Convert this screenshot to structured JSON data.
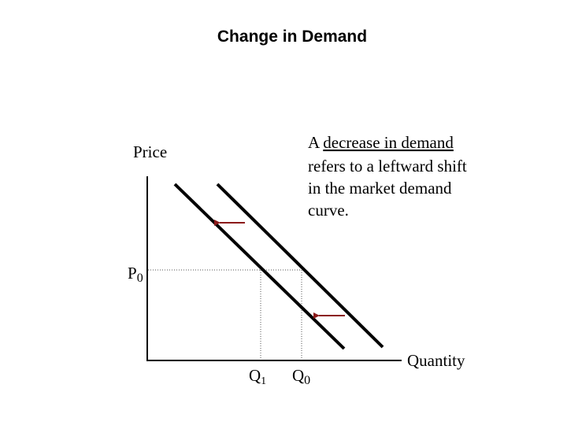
{
  "header": {
    "title": "Change in Demand"
  },
  "axes": {
    "y_label": "Price",
    "x_label": "Quantity"
  },
  "annotation": {
    "first_line": {
      "prefix": "A",
      "underlined": "decrease in demand"
    },
    "lines": [
      "refers to a leftward shift",
      "in the market demand",
      "curve."
    ]
  },
  "price_label": {
    "main": "P",
    "sub": "0"
  },
  "quantity_labels": [
    {
      "main": "Q",
      "sub": "1"
    },
    {
      "main": "Q",
      "sub": "0"
    }
  ]
}
